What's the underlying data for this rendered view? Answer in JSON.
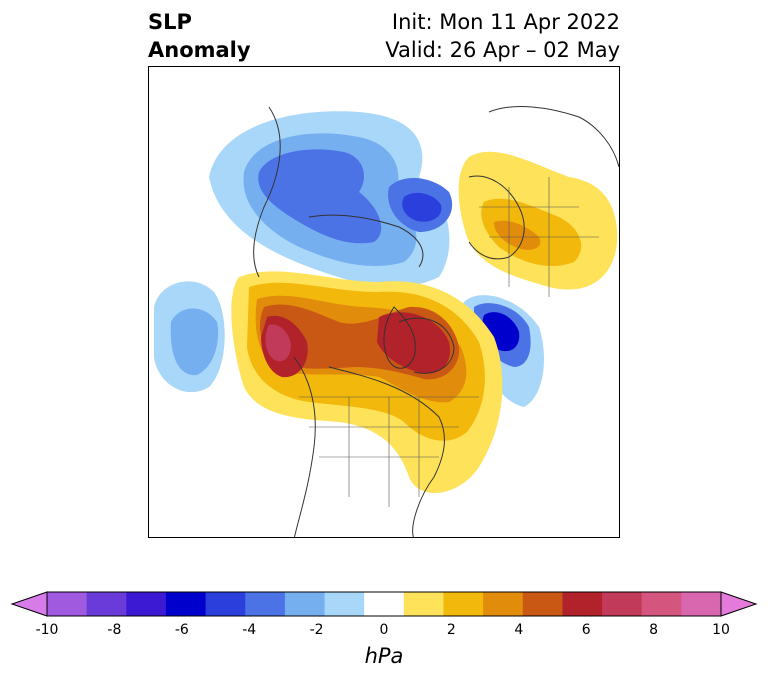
{
  "title": {
    "field_line1": "SLP",
    "field_line2": "Anomaly",
    "init": "Init: Mon 11 Apr 2022",
    "valid": "Valid: 26 Apr – 02 May"
  },
  "colorbar": {
    "units": "hPa",
    "ticks": [
      "-10",
      "-8",
      "-6",
      "-4",
      "-2",
      "0",
      "2",
      "4",
      "6",
      "8",
      "10"
    ],
    "colors": [
      "#d67be8",
      "#9f5ae0",
      "#6a3bd9",
      "#3c19d3",
      "#0000cc",
      "#2a3fdc",
      "#4c73e6",
      "#76aff0",
      "#a8d7f9",
      "#ffffff",
      "#fde25a",
      "#f2b80c",
      "#e28c0c",
      "#c95815",
      "#b2222a",
      "#c23a5a",
      "#d4567f",
      "#d867b0",
      "#e47ad9"
    ]
  }
}
